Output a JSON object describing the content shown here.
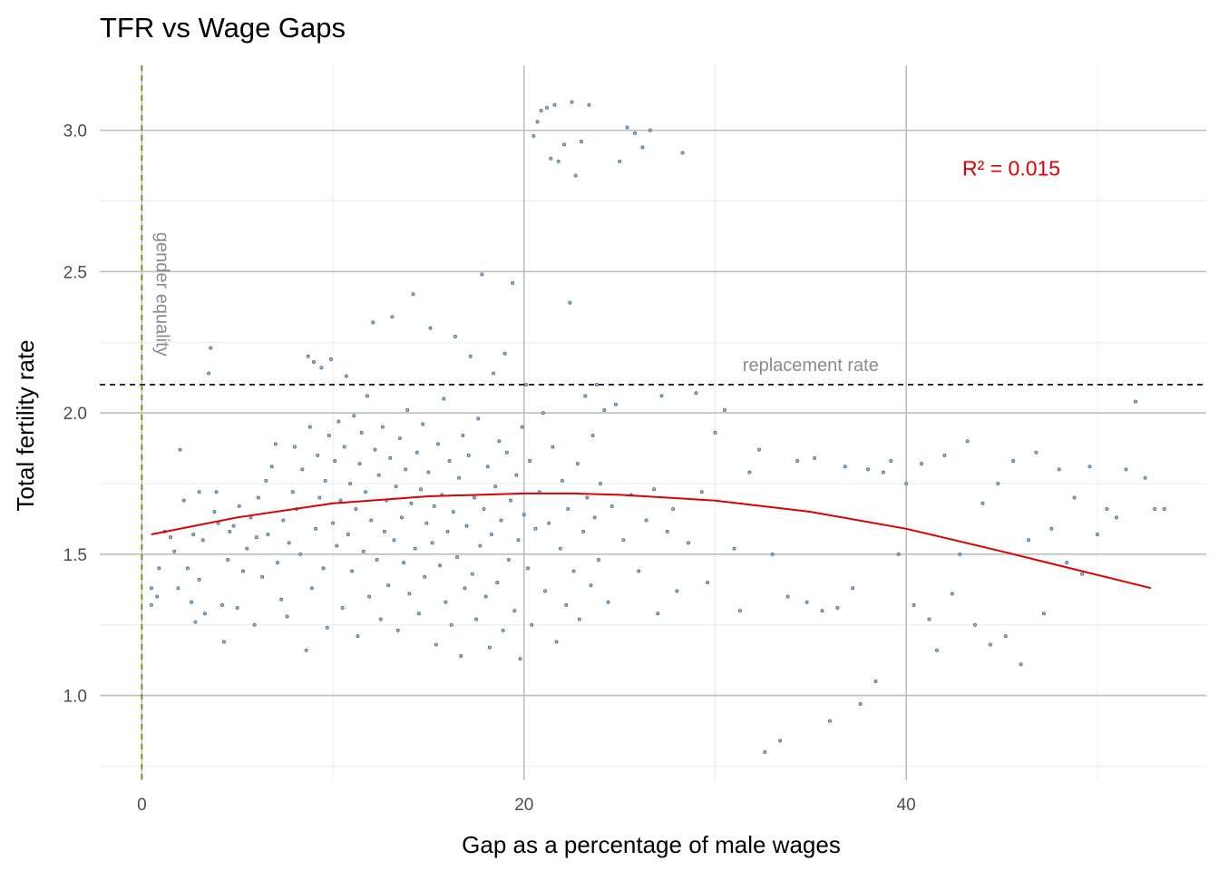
{
  "chart_data": {
    "type": "scatter",
    "title": "TFR vs Wage Gaps",
    "xlabel": "Gap as a percentage of male wages",
    "ylabel": "Total fertility rate",
    "xlim": [
      -2.2,
      55.7
    ],
    "ylim": [
      0.7,
      3.23
    ],
    "x_ticks": [
      0,
      20,
      40
    ],
    "x_tick_labels": [
      "0",
      "20",
      "40"
    ],
    "y_ticks": [
      1.0,
      1.5,
      2.0,
      2.5,
      3.0
    ],
    "y_tick_labels": [
      "1.0",
      "1.5",
      "2.0",
      "2.5",
      "3.0"
    ],
    "grid": true,
    "point_color": "#4a6f8f",
    "reference_lines": [
      {
        "orientation": "horizontal",
        "value": 2.1,
        "style": "dashed",
        "color": "#000000",
        "label": "replacement rate",
        "label_x": 35,
        "label_color": "#8c8c8c"
      },
      {
        "orientation": "vertical",
        "value": 0,
        "style": "dashed",
        "color": "#8b7a00",
        "label": "gender equality",
        "label_y": 2.42,
        "label_color": "#8c8c8c"
      }
    ],
    "fit_line": {
      "color": "#dd0000",
      "x": [
        0.5,
        5,
        10,
        15,
        20,
        22.5,
        25,
        30,
        35,
        40,
        45,
        52.8
      ],
      "y": [
        1.57,
        1.63,
        1.68,
        1.705,
        1.715,
        1.715,
        1.71,
        1.69,
        1.65,
        1.59,
        1.51,
        1.38
      ]
    },
    "annotation": {
      "text": "R² = 0.015",
      "x": 45.5,
      "y": 2.84,
      "color": "#e00000"
    },
    "points": [
      [
        0.5,
        1.32
      ],
      [
        0.5,
        1.38
      ],
      [
        0.8,
        1.35
      ],
      [
        0.9,
        1.45
      ],
      [
        1.2,
        1.58
      ],
      [
        1.5,
        1.56
      ],
      [
        1.7,
        1.51
      ],
      [
        1.9,
        1.38
      ],
      [
        2.0,
        1.87
      ],
      [
        2.2,
        1.69
      ],
      [
        2.4,
        1.45
      ],
      [
        2.6,
        1.33
      ],
      [
        2.7,
        1.57
      ],
      [
        2.8,
        1.26
      ],
      [
        3.0,
        1.41
      ],
      [
        3.0,
        1.72
      ],
      [
        3.2,
        1.55
      ],
      [
        3.3,
        1.29
      ],
      [
        3.5,
        2.14
      ],
      [
        3.6,
        2.23
      ],
      [
        3.8,
        1.65
      ],
      [
        3.9,
        1.72
      ],
      [
        4.0,
        1.61
      ],
      [
        4.2,
        1.32
      ],
      [
        4.3,
        1.19
      ],
      [
        4.5,
        1.48
      ],
      [
        4.6,
        1.58
      ],
      [
        4.8,
        1.6
      ],
      [
        5.0,
        1.31
      ],
      [
        5.1,
        1.67
      ],
      [
        5.3,
        1.44
      ],
      [
        5.5,
        1.52
      ],
      [
        5.7,
        1.63
      ],
      [
        5.9,
        1.25
      ],
      [
        6.0,
        1.56
      ],
      [
        6.1,
        1.7
      ],
      [
        6.3,
        1.42
      ],
      [
        6.5,
        1.76
      ],
      [
        6.6,
        1.57
      ],
      [
        6.8,
        1.81
      ],
      [
        7.0,
        1.89
      ],
      [
        7.1,
        1.47
      ],
      [
        7.3,
        1.34
      ],
      [
        7.4,
        1.62
      ],
      [
        7.6,
        1.28
      ],
      [
        7.7,
        1.54
      ],
      [
        7.9,
        1.72
      ],
      [
        8.0,
        1.88
      ],
      [
        8.1,
        1.66
      ],
      [
        8.3,
        1.5
      ],
      [
        8.4,
        1.8
      ],
      [
        8.6,
        1.16
      ],
      [
        8.7,
        2.2
      ],
      [
        8.8,
        1.95
      ],
      [
        8.9,
        1.38
      ],
      [
        9.0,
        2.18
      ],
      [
        9.1,
        1.59
      ],
      [
        9.2,
        1.85
      ],
      [
        9.3,
        1.7
      ],
      [
        9.4,
        2.16
      ],
      [
        9.5,
        1.45
      ],
      [
        9.6,
        1.76
      ],
      [
        9.7,
        1.24
      ],
      [
        9.8,
        1.92
      ],
      [
        9.9,
        2.19
      ],
      [
        10.0,
        1.61
      ],
      [
        10.1,
        1.83
      ],
      [
        10.2,
        1.53
      ],
      [
        10.3,
        1.97
      ],
      [
        10.4,
        1.69
      ],
      [
        10.5,
        1.31
      ],
      [
        10.6,
        1.88
      ],
      [
        10.7,
        2.13
      ],
      [
        10.8,
        1.57
      ],
      [
        10.9,
        1.75
      ],
      [
        11.0,
        1.44
      ],
      [
        11.1,
        1.99
      ],
      [
        11.2,
        1.66
      ],
      [
        11.3,
        1.21
      ],
      [
        11.4,
        1.82
      ],
      [
        11.5,
        1.93
      ],
      [
        11.6,
        1.51
      ],
      [
        11.7,
        1.72
      ],
      [
        11.8,
        2.06
      ],
      [
        11.9,
        1.35
      ],
      [
        12.0,
        1.62
      ],
      [
        12.1,
        2.32
      ],
      [
        12.2,
        1.87
      ],
      [
        12.3,
        1.48
      ],
      [
        12.4,
        1.78
      ],
      [
        12.5,
        1.27
      ],
      [
        12.6,
        1.95
      ],
      [
        12.7,
        1.58
      ],
      [
        12.8,
        1.69
      ],
      [
        12.9,
        1.39
      ],
      [
        13.0,
        1.84
      ],
      [
        13.1,
        2.34
      ],
      [
        13.2,
        1.55
      ],
      [
        13.3,
        1.74
      ],
      [
        13.4,
        1.23
      ],
      [
        13.5,
        1.91
      ],
      [
        13.6,
        1.63
      ],
      [
        13.7,
        1.47
      ],
      [
        13.8,
        1.8
      ],
      [
        13.9,
        2.01
      ],
      [
        14.0,
        1.36
      ],
      [
        14.1,
        1.68
      ],
      [
        14.2,
        2.42
      ],
      [
        14.3,
        1.52
      ],
      [
        14.4,
        1.86
      ],
      [
        14.5,
        1.29
      ],
      [
        14.6,
        1.73
      ],
      [
        14.7,
        1.96
      ],
      [
        14.8,
        1.42
      ],
      [
        14.9,
        1.61
      ],
      [
        15.0,
        1.79
      ],
      [
        15.1,
        2.3
      ],
      [
        15.2,
        1.54
      ],
      [
        15.3,
        1.67
      ],
      [
        15.4,
        1.18
      ],
      [
        15.5,
        1.89
      ],
      [
        15.6,
        1.46
      ],
      [
        15.7,
        1.71
      ],
      [
        15.8,
        2.05
      ],
      [
        15.9,
        1.33
      ],
      [
        16.0,
        1.58
      ],
      [
        16.1,
        1.83
      ],
      [
        16.2,
        1.25
      ],
      [
        16.3,
        1.65
      ],
      [
        16.4,
        2.27
      ],
      [
        16.5,
        1.49
      ],
      [
        16.6,
        1.77
      ],
      [
        16.7,
        1.14
      ],
      [
        16.8,
        1.92
      ],
      [
        16.9,
        1.38
      ],
      [
        17.0,
        1.6
      ],
      [
        17.1,
        1.85
      ],
      [
        17.2,
        2.2
      ],
      [
        17.3,
        1.43
      ],
      [
        17.4,
        1.7
      ],
      [
        17.5,
        1.27
      ],
      [
        17.6,
        1.98
      ],
      [
        17.7,
        1.53
      ],
      [
        17.8,
        2.49
      ],
      [
        17.9,
        1.66
      ],
      [
        18.0,
        1.35
      ],
      [
        18.1,
        1.81
      ],
      [
        18.2,
        1.17
      ],
      [
        18.3,
        1.57
      ],
      [
        18.4,
        2.14
      ],
      [
        18.5,
        1.74
      ],
      [
        18.6,
        1.4
      ],
      [
        18.7,
        1.9
      ],
      [
        18.8,
        1.62
      ],
      [
        18.9,
        1.23
      ],
      [
        19.0,
        2.21
      ],
      [
        19.1,
        1.86
      ],
      [
        19.2,
        1.48
      ],
      [
        19.3,
        1.69
      ],
      [
        19.4,
        2.46
      ],
      [
        19.5,
        1.3
      ],
      [
        19.6,
        1.78
      ],
      [
        19.7,
        1.55
      ],
      [
        19.8,
        1.13
      ],
      [
        19.9,
        1.95
      ],
      [
        20.0,
        1.64
      ],
      [
        20.1,
        2.1
      ],
      [
        20.2,
        1.45
      ],
      [
        20.3,
        1.83
      ],
      [
        20.4,
        1.25
      ],
      [
        20.5,
        2.98
      ],
      [
        20.6,
        1.59
      ],
      [
        20.7,
        3.03
      ],
      [
        20.8,
        1.72
      ],
      [
        20.9,
        3.07
      ],
      [
        21.0,
        2.0
      ],
      [
        21.1,
        1.37
      ],
      [
        21.2,
        3.08
      ],
      [
        21.3,
        1.61
      ],
      [
        21.4,
        2.9
      ],
      [
        21.5,
        1.88
      ],
      [
        21.6,
        3.09
      ],
      [
        21.7,
        1.19
      ],
      [
        21.8,
        2.89
      ],
      [
        21.9,
        1.52
      ],
      [
        22.0,
        1.76
      ],
      [
        22.1,
        2.95
      ],
      [
        22.2,
        1.32
      ],
      [
        22.3,
        1.66
      ],
      [
        22.4,
        2.39
      ],
      [
        22.5,
        3.1
      ],
      [
        22.6,
        1.44
      ],
      [
        22.7,
        2.84
      ],
      [
        22.8,
        1.82
      ],
      [
        22.9,
        1.27
      ],
      [
        23.0,
        2.96
      ],
      [
        23.1,
        1.58
      ],
      [
        23.2,
        2.06
      ],
      [
        23.3,
        1.7
      ],
      [
        23.4,
        3.09
      ],
      [
        23.5,
        1.39
      ],
      [
        23.6,
        1.92
      ],
      [
        23.7,
        1.63
      ],
      [
        23.8,
        2.1
      ],
      [
        23.9,
        1.48
      ],
      [
        24.0,
        1.75
      ],
      [
        24.2,
        2.01
      ],
      [
        24.4,
        1.33
      ],
      [
        24.6,
        1.67
      ],
      [
        24.8,
        2.03
      ],
      [
        25.0,
        2.89
      ],
      [
        25.2,
        1.55
      ],
      [
        25.4,
        3.01
      ],
      [
        25.6,
        1.71
      ],
      [
        25.8,
        2.99
      ],
      [
        26.0,
        1.44
      ],
      [
        26.2,
        2.94
      ],
      [
        26.4,
        1.62
      ],
      [
        26.6,
        3.0
      ],
      [
        26.8,
        1.73
      ],
      [
        27.0,
        1.29
      ],
      [
        27.2,
        2.06
      ],
      [
        27.5,
        1.58
      ],
      [
        27.8,
        1.66
      ],
      [
        28.0,
        1.37
      ],
      [
        28.3,
        2.92
      ],
      [
        28.6,
        1.54
      ],
      [
        29.0,
        2.07
      ],
      [
        29.3,
        1.72
      ],
      [
        29.6,
        1.4
      ],
      [
        30.0,
        1.93
      ],
      [
        30.5,
        2.01
      ],
      [
        31.0,
        1.52
      ],
      [
        31.3,
        1.3
      ],
      [
        31.8,
        1.79
      ],
      [
        32.3,
        1.87
      ],
      [
        32.6,
        0.8
      ],
      [
        33.0,
        1.5
      ],
      [
        33.4,
        0.84
      ],
      [
        33.8,
        1.35
      ],
      [
        34.3,
        1.83
      ],
      [
        34.8,
        1.33
      ],
      [
        35.2,
        1.84
      ],
      [
        35.6,
        1.3
      ],
      [
        36.0,
        0.91
      ],
      [
        36.4,
        1.31
      ],
      [
        36.8,
        1.81
      ],
      [
        37.2,
        1.38
      ],
      [
        37.6,
        0.97
      ],
      [
        38.0,
        1.8
      ],
      [
        38.4,
        1.05
      ],
      [
        38.8,
        1.79
      ],
      [
        39.2,
        1.83
      ],
      [
        39.6,
        1.5
      ],
      [
        40.0,
        1.75
      ],
      [
        40.4,
        1.32
      ],
      [
        40.8,
        1.82
      ],
      [
        41.2,
        1.27
      ],
      [
        41.6,
        1.16
      ],
      [
        42.0,
        1.85
      ],
      [
        42.4,
        1.36
      ],
      [
        42.8,
        1.5
      ],
      [
        43.2,
        1.9
      ],
      [
        43.6,
        1.25
      ],
      [
        44.0,
        1.68
      ],
      [
        44.4,
        1.18
      ],
      [
        44.8,
        1.75
      ],
      [
        45.2,
        1.21
      ],
      [
        45.6,
        1.83
      ],
      [
        46.0,
        1.11
      ],
      [
        46.4,
        1.55
      ],
      [
        46.8,
        1.86
      ],
      [
        47.2,
        1.29
      ],
      [
        47.6,
        1.59
      ],
      [
        48.0,
        1.8
      ],
      [
        48.4,
        1.47
      ],
      [
        48.8,
        1.7
      ],
      [
        49.2,
        1.43
      ],
      [
        49.6,
        1.81
      ],
      [
        50.0,
        1.57
      ],
      [
        50.5,
        1.66
      ],
      [
        51.0,
        1.63
      ],
      [
        51.5,
        1.8
      ],
      [
        52.0,
        2.04
      ],
      [
        52.5,
        1.77
      ],
      [
        53.0,
        1.66
      ],
      [
        53.5,
        1.66
      ]
    ]
  }
}
